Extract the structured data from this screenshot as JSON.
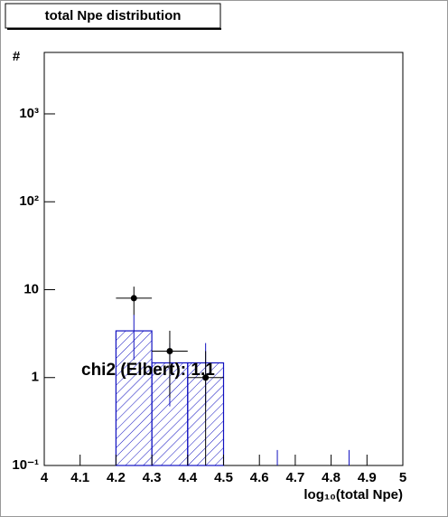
{
  "chart_data": {
    "type": "histogram",
    "title": "total Npe distribution",
    "xlabel": "log₁₀(total Npe)",
    "ylabel": "#",
    "annotation": "chi2 (Elbert): 1.1",
    "log_y": true,
    "bins": [
      4.0,
      4.1,
      4.2,
      4.3,
      4.4,
      4.5,
      4.6,
      4.7,
      4.8,
      4.9,
      5.0
    ],
    "histogram": {
      "color": "#1010c0",
      "values": [
        0,
        0,
        3.4,
        1.47,
        1.47,
        0,
        0,
        0,
        0,
        0
      ],
      "errors": [
        0,
        0,
        1.8,
        1,
        1,
        0,
        0.15,
        0,
        0.15,
        0
      ]
    },
    "points": {
      "color": "#000000",
      "x": [
        4.25,
        4.35,
        4.45
      ],
      "values": [
        8,
        2,
        1
      ],
      "errors": [
        2.83,
        1.41,
        1
      ]
    },
    "xlim": [
      4,
      5
    ],
    "xticks": [
      4,
      4.1,
      4.2,
      4.3,
      4.4,
      4.5,
      4.6,
      4.7,
      4.8,
      4.9,
      5
    ],
    "ylim": [
      0.1,
      5000
    ],
    "yticks": [
      {
        "value": 0.1,
        "label": "10⁻¹"
      },
      1,
      10,
      {
        "value": 100,
        "label": "10²"
      },
      {
        "value": 1000,
        "label": "10³"
      }
    ]
  }
}
